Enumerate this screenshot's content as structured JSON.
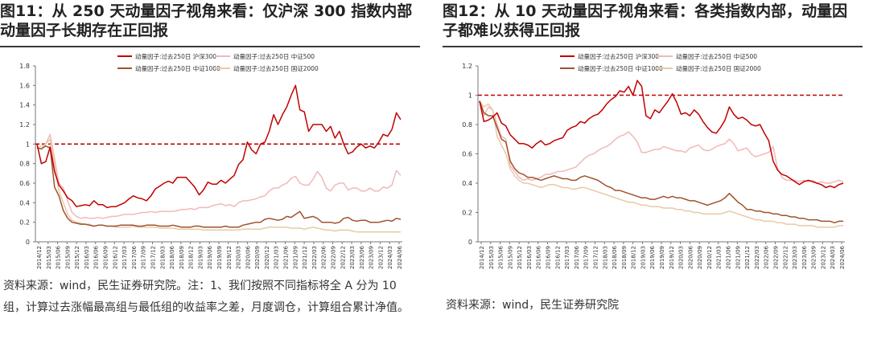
{
  "figures": [
    {
      "title": "图11：从 250 天动量因子视角来看：仅沪深 300 指数内部动量因子长期存在正回报",
      "note": "资料来源：wind，民生证券研究院。注：1、我们按照不同指标将全 A 分为 10 组，计算过去涨幅最高组与最低组的收益率之差，月度调仓，计算组合累计净值。"
    },
    {
      "title": "图12：从 10 天动量因子视角来看：各类指数内部，动量因子都难以获得正回报",
      "note": "资料来源：wind，民生证券研究院"
    }
  ],
  "chart_data": [
    {
      "type": "line",
      "ylim": [
        0,
        1.8
      ],
      "yticks": [
        "0",
        "0.2",
        "0.4",
        "0.6",
        "0.8",
        "1",
        "1.2",
        "1.4",
        "1.6",
        "1.8"
      ],
      "x_labels": [
        "2014/12",
        "2015/03",
        "2015/06",
        "2015/09",
        "2015/12",
        "2016/03",
        "2016/06",
        "2016/09",
        "2016/12",
        "2017/03",
        "2017/06",
        "2017/09",
        "2017/12",
        "2018/03",
        "2018/06",
        "2018/09",
        "2018/12",
        "2019/03",
        "2019/06",
        "2019/09",
        "2019/12",
        "2020/03",
        "2020/06",
        "2020/09",
        "2020/12",
        "2021/03",
        "2021/06",
        "2021/09",
        "2021/12",
        "2022/03",
        "2022/06",
        "2022/09",
        "2022/12",
        "2023/03",
        "2023/06",
        "2023/09",
        "2023/12",
        "2024/03",
        "2024/06"
      ],
      "reference_line": 1,
      "legend_position": "top",
      "series": [
        {
          "name": "动量因子:过去250日 沪深300",
          "color": "#c00000",
          "values": [
            1.0,
            0.8,
            0.82,
            0.97,
            0.72,
            0.58,
            0.52,
            0.45,
            0.42,
            0.36,
            0.37,
            0.38,
            0.37,
            0.42,
            0.38,
            0.38,
            0.35,
            0.36,
            0.36,
            0.38,
            0.4,
            0.44,
            0.47,
            0.45,
            0.44,
            0.42,
            0.47,
            0.54,
            0.57,
            0.6,
            0.62,
            0.6,
            0.66,
            0.66,
            0.66,
            0.61,
            0.56,
            0.48,
            0.53,
            0.61,
            0.59,
            0.59,
            0.63,
            0.6,
            0.64,
            0.68,
            0.79,
            0.84,
            1.02,
            0.94,
            0.9,
            1.0,
            1.02,
            1.13,
            1.3,
            1.2,
            1.3,
            1.38,
            1.5,
            1.6,
            1.35,
            1.33,
            1.13,
            1.2,
            1.2,
            1.2,
            1.13,
            1.18,
            1.06,
            1.13,
            1.0,
            0.9,
            0.92,
            0.97,
            1.0,
            0.96,
            0.98,
            0.96,
            1.02,
            1.1,
            1.08,
            1.15,
            1.32,
            1.25
          ]
        },
        {
          "name": "动量因子:过去250日 中证500",
          "color": "#f2b8b8",
          "values": [
            0.96,
            0.95,
            1.0,
            1.1,
            0.85,
            0.6,
            0.55,
            0.42,
            0.3,
            0.26,
            0.24,
            0.25,
            0.24,
            0.24,
            0.25,
            0.24,
            0.25,
            0.26,
            0.26,
            0.27,
            0.28,
            0.28,
            0.28,
            0.29,
            0.3,
            0.3,
            0.31,
            0.3,
            0.31,
            0.31,
            0.31,
            0.31,
            0.32,
            0.33,
            0.33,
            0.34,
            0.33,
            0.35,
            0.35,
            0.35,
            0.37,
            0.38,
            0.39,
            0.37,
            0.38,
            0.36,
            0.4,
            0.42,
            0.42,
            0.43,
            0.44,
            0.46,
            0.47,
            0.52,
            0.55,
            0.55,
            0.58,
            0.6,
            0.65,
            0.67,
            0.6,
            0.58,
            0.58,
            0.64,
            0.72,
            0.66,
            0.55,
            0.52,
            0.58,
            0.6,
            0.6,
            0.53,
            0.55,
            0.55,
            0.52,
            0.52,
            0.55,
            0.52,
            0.52,
            0.56,
            0.55,
            0.58,
            0.73,
            0.68
          ]
        },
        {
          "name": "动量因子:过去250日 中证1000",
          "color": "#a0522d",
          "values": [
            0.96,
            0.95,
            0.98,
            0.96,
            0.56,
            0.47,
            0.32,
            0.24,
            0.2,
            0.19,
            0.18,
            0.18,
            0.17,
            0.16,
            0.17,
            0.17,
            0.16,
            0.16,
            0.16,
            0.17,
            0.17,
            0.17,
            0.17,
            0.16,
            0.16,
            0.17,
            0.17,
            0.17,
            0.16,
            0.16,
            0.16,
            0.17,
            0.16,
            0.15,
            0.15,
            0.15,
            0.16,
            0.16,
            0.15,
            0.15,
            0.15,
            0.15,
            0.15,
            0.16,
            0.15,
            0.15,
            0.15,
            0.17,
            0.18,
            0.19,
            0.2,
            0.2,
            0.23,
            0.24,
            0.23,
            0.22,
            0.23,
            0.26,
            0.25,
            0.28,
            0.31,
            0.24,
            0.25,
            0.26,
            0.24,
            0.2,
            0.2,
            0.2,
            0.19,
            0.2,
            0.24,
            0.25,
            0.22,
            0.21,
            0.22,
            0.22,
            0.2,
            0.2,
            0.2,
            0.21,
            0.22,
            0.21,
            0.24,
            0.23
          ]
        },
        {
          "name": "动量因子:过去250日 国证2000",
          "color": "#e8c9a8",
          "values": [
            0.96,
            0.98,
            1.0,
            1.05,
            0.78,
            0.52,
            0.4,
            0.28,
            0.22,
            0.2,
            0.19,
            0.18,
            0.18,
            0.16,
            0.17,
            0.17,
            0.16,
            0.16,
            0.15,
            0.15,
            0.15,
            0.15,
            0.16,
            0.15,
            0.15,
            0.15,
            0.15,
            0.15,
            0.14,
            0.14,
            0.14,
            0.14,
            0.13,
            0.13,
            0.13,
            0.13,
            0.13,
            0.13,
            0.12,
            0.12,
            0.12,
            0.12,
            0.12,
            0.12,
            0.12,
            0.12,
            0.12,
            0.13,
            0.13,
            0.13,
            0.13,
            0.13,
            0.14,
            0.15,
            0.15,
            0.15,
            0.15,
            0.15,
            0.14,
            0.14,
            0.14,
            0.13,
            0.14,
            0.15,
            0.14,
            0.13,
            0.12,
            0.12,
            0.11,
            0.12,
            0.12,
            0.12,
            0.11,
            0.1,
            0.1,
            0.1,
            0.1,
            0.1,
            0.1,
            0.1,
            0.1,
            0.1,
            0.1,
            0.1
          ]
        }
      ]
    },
    {
      "type": "line",
      "ylim": [
        0,
        1.2
      ],
      "yticks": [
        "0",
        "0.2",
        "0.4",
        "0.6",
        "0.8",
        "1",
        "1.2"
      ],
      "x_labels": [
        "2014/12",
        "2015/03",
        "2015/06",
        "2015/09",
        "2015/12",
        "2016/03",
        "2016/06",
        "2016/09",
        "2016/12",
        "2017/03",
        "2017/06",
        "2017/09",
        "2017/12",
        "2018/03",
        "2018/06",
        "2018/09",
        "2018/12",
        "2019/03",
        "2019/06",
        "2019/09",
        "2019/12",
        "2020/03",
        "2020/06",
        "2020/09",
        "2020/12",
        "2021/03",
        "2021/06",
        "2021/09",
        "2021/12",
        "2022/03",
        "2022/06",
        "2022/09",
        "2022/12",
        "2023/03",
        "2023/06",
        "2023/09",
        "2023/12",
        "2024/03",
        "2024/06"
      ],
      "reference_line": 1,
      "legend_position": "top",
      "series": [
        {
          "name": "动量因子:过去250日 沪深300",
          "color": "#c00000",
          "values": [
            0.96,
            0.82,
            0.83,
            0.85,
            0.88,
            0.81,
            0.79,
            0.73,
            0.7,
            0.67,
            0.67,
            0.66,
            0.64,
            0.67,
            0.69,
            0.66,
            0.67,
            0.69,
            0.7,
            0.71,
            0.76,
            0.78,
            0.79,
            0.82,
            0.81,
            0.84,
            0.86,
            0.87,
            0.9,
            0.94,
            0.97,
            0.99,
            1.03,
            1.02,
            1.06,
            1.0,
            1.1,
            1.06,
            0.86,
            0.84,
            0.9,
            0.88,
            0.92,
            0.96,
            1.01,
            0.95,
            0.87,
            0.88,
            0.86,
            0.9,
            0.87,
            0.82,
            0.78,
            0.75,
            0.74,
            0.78,
            0.83,
            0.92,
            0.87,
            0.84,
            0.85,
            0.83,
            0.8,
            0.79,
            0.8,
            0.74,
            0.69,
            0.55,
            0.49,
            0.46,
            0.45,
            0.43,
            0.41,
            0.39,
            0.41,
            0.42,
            0.41,
            0.4,
            0.39,
            0.37,
            0.38,
            0.37,
            0.39,
            0.4
          ]
        },
        {
          "name": "动量因子:过去250日 中证500",
          "color": "#f2b8b8",
          "values": [
            0.96,
            0.86,
            0.92,
            0.9,
            0.8,
            0.72,
            0.7,
            0.52,
            0.48,
            0.44,
            0.42,
            0.43,
            0.42,
            0.43,
            0.44,
            0.46,
            0.46,
            0.47,
            0.48,
            0.48,
            0.49,
            0.5,
            0.51,
            0.54,
            0.57,
            0.59,
            0.6,
            0.62,
            0.64,
            0.65,
            0.67,
            0.7,
            0.72,
            0.73,
            0.75,
            0.72,
            0.68,
            0.61,
            0.61,
            0.62,
            0.63,
            0.63,
            0.65,
            0.64,
            0.63,
            0.62,
            0.62,
            0.61,
            0.64,
            0.65,
            0.66,
            0.63,
            0.62,
            0.63,
            0.65,
            0.66,
            0.67,
            0.7,
            0.67,
            0.62,
            0.63,
            0.64,
            0.6,
            0.58,
            0.59,
            0.6,
            0.61,
            0.65,
            0.5,
            0.44,
            0.42,
            0.42,
            0.42,
            0.41,
            0.42,
            0.41,
            0.42,
            0.4,
            0.41,
            0.4,
            0.4,
            0.41,
            0.42,
            0.41
          ]
        },
        {
          "name": "动量因子:过去250日 中证1000",
          "color": "#a0522d",
          "values": [
            0.96,
            0.88,
            0.86,
            0.86,
            0.78,
            0.7,
            0.68,
            0.55,
            0.5,
            0.47,
            0.46,
            0.44,
            0.44,
            0.43,
            0.42,
            0.43,
            0.44,
            0.45,
            0.44,
            0.43,
            0.43,
            0.42,
            0.42,
            0.44,
            0.45,
            0.44,
            0.43,
            0.42,
            0.4,
            0.38,
            0.37,
            0.35,
            0.35,
            0.34,
            0.33,
            0.32,
            0.31,
            0.3,
            0.3,
            0.29,
            0.29,
            0.3,
            0.31,
            0.3,
            0.31,
            0.3,
            0.3,
            0.29,
            0.28,
            0.28,
            0.27,
            0.26,
            0.25,
            0.26,
            0.27,
            0.28,
            0.3,
            0.33,
            0.3,
            0.27,
            0.25,
            0.22,
            0.22,
            0.21,
            0.21,
            0.2,
            0.2,
            0.19,
            0.19,
            0.18,
            0.18,
            0.17,
            0.17,
            0.16,
            0.16,
            0.15,
            0.15,
            0.15,
            0.14,
            0.14,
            0.14,
            0.13,
            0.14,
            0.14
          ]
        },
        {
          "name": "动量因子:过去250日 国证2000",
          "color": "#e8c9a8",
          "values": [
            0.96,
            0.92,
            0.94,
            0.9,
            0.72,
            0.66,
            0.6,
            0.5,
            0.45,
            0.42,
            0.4,
            0.4,
            0.39,
            0.38,
            0.37,
            0.38,
            0.39,
            0.39,
            0.38,
            0.37,
            0.37,
            0.36,
            0.36,
            0.37,
            0.37,
            0.36,
            0.35,
            0.34,
            0.33,
            0.32,
            0.31,
            0.3,
            0.29,
            0.28,
            0.27,
            0.27,
            0.26,
            0.25,
            0.25,
            0.24,
            0.24,
            0.24,
            0.23,
            0.23,
            0.23,
            0.22,
            0.22,
            0.21,
            0.21,
            0.2,
            0.2,
            0.19,
            0.19,
            0.19,
            0.19,
            0.19,
            0.2,
            0.21,
            0.2,
            0.19,
            0.18,
            0.17,
            0.16,
            0.15,
            0.15,
            0.14,
            0.14,
            0.14,
            0.13,
            0.13,
            0.12,
            0.12,
            0.12,
            0.11,
            0.11,
            0.11,
            0.11,
            0.1,
            0.1,
            0.1,
            0.1,
            0.1,
            0.11,
            0.11
          ]
        }
      ]
    }
  ]
}
